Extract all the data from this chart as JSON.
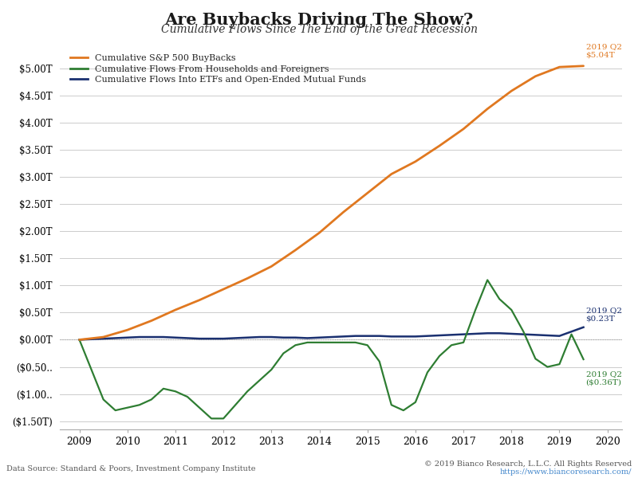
{
  "title": "Are Buybacks Driving The Show?",
  "subtitle": "Cumulative Flows Since The End of the Great Recession",
  "title_fontsize": 15,
  "subtitle_fontsize": 10,
  "background_color": "#ffffff",
  "plot_bg_color": "#ffffff",
  "grid_color": "#cccccc",
  "legend_labels": [
    "Cumulative S&P 500 BuyBacks",
    "Cumulative Flows From Households and Foreigners",
    "Cumulative Flows Into ETFs and Open-Ended Mutual Funds"
  ],
  "legend_colors": [
    "#e07820",
    "#2e7d32",
    "#1a3070"
  ],
  "footer_left": "Data Source: Standard & Poors, Investment Company Institute",
  "footer_right": "© 2019 Bianco Research, L.L.C. All Rights Reserved",
  "footer_url": "https://www.biancoresearch.com/",
  "x_labels": [
    "2009",
    "2010",
    "2011",
    "2012",
    "2013",
    "2014",
    "2015",
    "2016",
    "2017",
    "2018",
    "2019",
    "2020"
  ],
  "xtick_positions": [
    2009,
    2010,
    2011,
    2012,
    2013,
    2014,
    2015,
    2016,
    2017,
    2018,
    2019,
    2020
  ],
  "ytick_labels": [
    "$5.00T",
    "$4.50T",
    "$4.00T",
    "$3.50T",
    "$3.00T",
    "$2.50T",
    "$2.00T",
    "$1.50T",
    "$1.00T",
    "$0.50T",
    "$0.00T",
    "($0.50..",
    "($1.00..",
    "($1.50T)"
  ],
  "ytick_values": [
    5.0,
    4.5,
    4.0,
    3.5,
    3.0,
    2.5,
    2.0,
    1.5,
    1.0,
    0.5,
    0.0,
    -0.5,
    -1.0,
    -1.5
  ],
  "ylim": [
    -1.65,
    5.55
  ],
  "xlim": [
    2008.6,
    2020.3
  ],
  "buybacks_x": [
    2009.0,
    2009.5,
    2010.0,
    2010.5,
    2011.0,
    2011.5,
    2012.0,
    2012.5,
    2013.0,
    2013.5,
    2014.0,
    2014.5,
    2015.0,
    2015.5,
    2016.0,
    2016.5,
    2017.0,
    2017.5,
    2018.0,
    2018.5,
    2019.0,
    2019.5
  ],
  "buybacks_y": [
    0.0,
    0.05,
    0.18,
    0.35,
    0.55,
    0.73,
    0.93,
    1.13,
    1.35,
    1.65,
    1.97,
    2.35,
    2.7,
    3.05,
    3.28,
    3.57,
    3.88,
    4.25,
    4.58,
    4.85,
    5.02,
    5.04
  ],
  "households_x": [
    2009.0,
    2009.25,
    2009.5,
    2009.75,
    2010.0,
    2010.25,
    2010.5,
    2010.75,
    2011.0,
    2011.25,
    2011.5,
    2011.75,
    2012.0,
    2012.25,
    2012.5,
    2012.75,
    2013.0,
    2013.25,
    2013.5,
    2013.75,
    2014.0,
    2014.25,
    2014.5,
    2014.75,
    2015.0,
    2015.25,
    2015.5,
    2015.75,
    2016.0,
    2016.25,
    2016.5,
    2016.75,
    2017.0,
    2017.25,
    2017.5,
    2017.75,
    2018.0,
    2018.25,
    2018.5,
    2018.75,
    2019.0,
    2019.25,
    2019.5
  ],
  "households_y": [
    0.0,
    -0.55,
    -1.1,
    -1.3,
    -1.25,
    -1.2,
    -1.1,
    -0.9,
    -0.95,
    -1.05,
    -1.25,
    -1.45,
    -1.45,
    -1.2,
    -0.95,
    -0.75,
    -0.55,
    -0.25,
    -0.1,
    -0.05,
    -0.05,
    -0.05,
    -0.05,
    -0.05,
    -0.1,
    -0.4,
    -1.2,
    -1.3,
    -1.15,
    -0.6,
    -0.3,
    -0.1,
    -0.05,
    0.55,
    1.1,
    0.75,
    0.55,
    0.15,
    -0.35,
    -0.5,
    -0.45,
    0.1,
    -0.36
  ],
  "etf_x": [
    2009.0,
    2009.25,
    2009.5,
    2009.75,
    2010.0,
    2010.25,
    2010.5,
    2010.75,
    2011.0,
    2011.25,
    2011.5,
    2011.75,
    2012.0,
    2012.25,
    2012.5,
    2012.75,
    2013.0,
    2013.25,
    2013.5,
    2013.75,
    2014.0,
    2014.25,
    2014.5,
    2014.75,
    2015.0,
    2015.25,
    2015.5,
    2015.75,
    2016.0,
    2016.25,
    2016.5,
    2016.75,
    2017.0,
    2017.25,
    2017.5,
    2017.75,
    2018.0,
    2018.25,
    2018.5,
    2018.75,
    2019.0,
    2019.25,
    2019.5
  ],
  "etf_y": [
    0.0,
    0.01,
    0.02,
    0.03,
    0.04,
    0.05,
    0.05,
    0.05,
    0.04,
    0.03,
    0.02,
    0.02,
    0.02,
    0.03,
    0.04,
    0.05,
    0.05,
    0.04,
    0.04,
    0.03,
    0.04,
    0.05,
    0.06,
    0.07,
    0.07,
    0.07,
    0.06,
    0.06,
    0.06,
    0.07,
    0.08,
    0.09,
    0.1,
    0.11,
    0.12,
    0.12,
    0.11,
    0.1,
    0.09,
    0.08,
    0.07,
    0.15,
    0.23
  ]
}
